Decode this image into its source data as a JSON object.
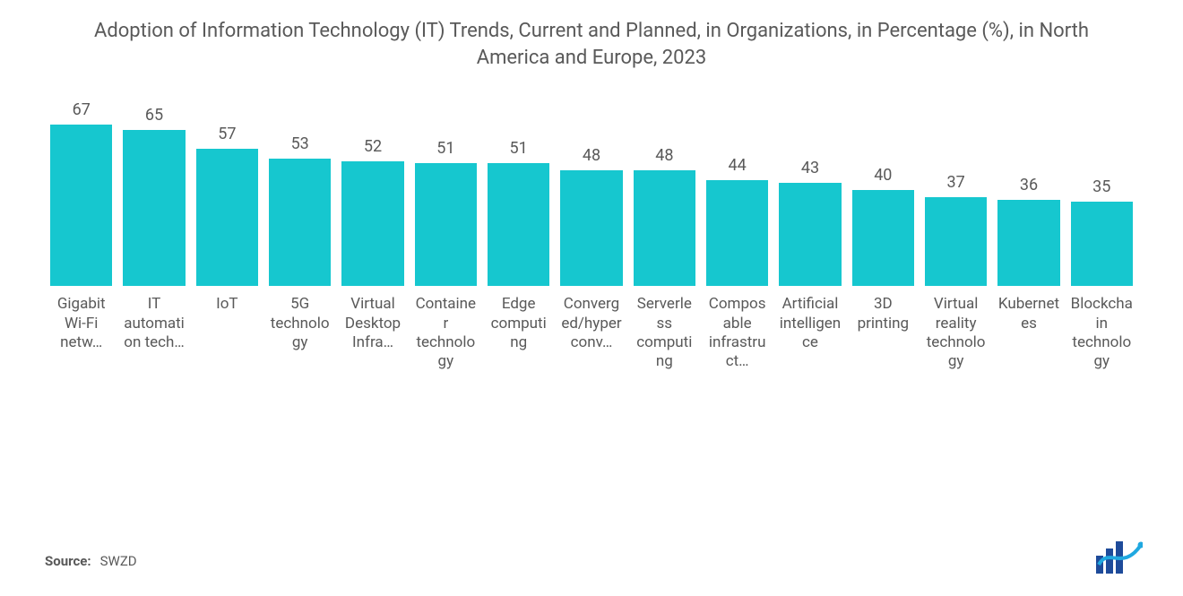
{
  "chart": {
    "type": "bar",
    "title": "Adoption of Information Technology (IT) Trends, Current and Planned, in Organizations, in Percentage (%), in North America and Europe, 2023",
    "title_fontsize": 22,
    "title_color": "#595959",
    "categories": [
      "Gigabit Wi-Fi netw…",
      "IT automation tech…",
      "IoT",
      "5G technology",
      "Virtual Desktop Infra…",
      "Container technology",
      "Edge computing",
      "Converged/hyperconv…",
      "Serverless computing",
      "Composable infrastruct…",
      "Artificial intelligence",
      "3D printing",
      "Virtual reality technology",
      "Kubernetes",
      "Blockchain technology"
    ],
    "values": [
      67,
      65,
      57,
      53,
      52,
      51,
      51,
      48,
      48,
      44,
      43,
      40,
      37,
      36,
      35
    ],
    "bar_color": "#16c7cf",
    "value_label_color": "#595959",
    "value_label_fontsize": 18,
    "x_label_color": "#595959",
    "x_label_fontsize": 17,
    "background_color": "#ffffff",
    "ylim": [
      0,
      67
    ],
    "grid": false
  },
  "source": {
    "label": "Source:",
    "value": "SWZD",
    "label_fontsize": 15,
    "value_fontsize": 15,
    "color": "#595959"
  },
  "logo": {
    "name": "mordor-intelligence-logo",
    "bar_color": "#1e4b9a",
    "accent_color": "#1fa8e0"
  }
}
